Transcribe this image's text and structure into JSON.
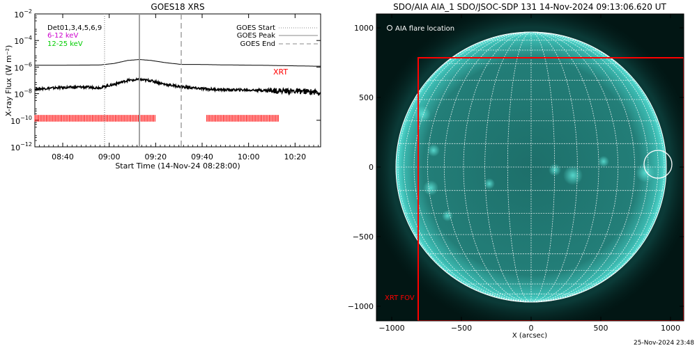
{
  "chart_data": [
    {
      "type": "line",
      "title": "GOES18 XRS",
      "ylabel": "X-ray Flux (W m⁻²)",
      "xlabel": "Start Time (14-Nov-24 08:28:00)",
      "yscale": "log",
      "ylim_exponent": [
        -12,
        -2
      ],
      "y_tick_exponents": [
        -12,
        -10,
        -8,
        -6,
        -4,
        -2
      ],
      "y_tick_base": "10",
      "xlim_min_after_start": [
        0,
        123
      ],
      "x_ticks": [
        {
          "label": "08:40",
          "minute": 12
        },
        {
          "label": "09:00",
          "minute": 32
        },
        {
          "label": "09:20",
          "minute": 52
        },
        {
          "label": "09:40",
          "minute": 72
        },
        {
          "label": "10:00",
          "minute": 92
        },
        {
          "label": "10:20",
          "minute": 112
        }
      ],
      "detectors_label": "Det01,3,4,5,6,9",
      "band_labels": [
        {
          "text": "6-12 keV",
          "color": "#cc00cc"
        },
        {
          "text": "12-25 keV",
          "color": "#00cc00"
        }
      ],
      "legend": {
        "placement": "top-right",
        "items": [
          {
            "label": "GOES Start",
            "style": "dotted"
          },
          {
            "label": "GOES Peak",
            "style": "solid"
          },
          {
            "label": "GOES End",
            "style": "dashed"
          }
        ]
      },
      "markers": {
        "goes_start_minute": 30,
        "goes_peak_minute": 45,
        "goes_end_minute": 63
      },
      "series": [
        {
          "name": "long",
          "color": "#000000",
          "x_minutes": [
            0,
            10,
            20,
            28,
            34,
            40,
            45,
            50,
            56,
            63,
            70,
            80,
            90,
            100,
            110,
            120,
            123
          ],
          "log10_flux": [
            -5.86,
            -5.86,
            -5.85,
            -5.84,
            -5.73,
            -5.5,
            -5.43,
            -5.5,
            -5.66,
            -5.8,
            -5.8,
            -5.83,
            -5.85,
            -5.87,
            -5.9,
            -5.93,
            -5.93
          ]
        },
        {
          "name": "short",
          "color": "#000000",
          "x_minutes": [
            0,
            10,
            20,
            28,
            34,
            40,
            45,
            50,
            56,
            63,
            70,
            80,
            90,
            100,
            110,
            118,
            123
          ],
          "log10_flux": [
            -7.65,
            -7.55,
            -7.5,
            -7.55,
            -7.3,
            -7.0,
            -6.95,
            -7.02,
            -7.3,
            -7.48,
            -7.6,
            -7.7,
            -7.72,
            -7.75,
            -7.8,
            -7.85,
            -7.9
          ]
        }
      ],
      "xrt_label": "XRT",
      "xrt_label_color": "#ff0000",
      "xrt_observation_windows_min": [
        [
          0,
          52
        ],
        [
          74,
          105
        ]
      ],
      "xrt_tick_log10_flux": [
        -10.1,
        -9.6
      ]
    },
    {
      "type": "image",
      "title": "SDO/AIA AIA_1 SDO/JSOC-SDP 131 14-Nov-2024 09:13:06.620 UT",
      "xlabel": "X (arcsec)",
      "x_ticks": [
        -1000,
        -500,
        0,
        500,
        1000
      ],
      "y_ticks": [
        1000,
        500,
        0,
        -500,
        -1000
      ],
      "xlim": [
        -1110,
        1095
      ],
      "ylim": [
        -1105,
        1100
      ],
      "solar_radius_arcsec": 970,
      "grid_spacing_deg": 10,
      "grid_color": "#ffffff",
      "disk_color": "#1a6e69",
      "limb_color": "#4fd8cf",
      "flare_location_label": "AIA flare location",
      "flare_location_arcsec": [
        910,
        20
      ],
      "flare_circle_radius_arcsec": 100,
      "fov_label": "XRT FOV",
      "fov_color": "#ff0000",
      "fov_box_arcsec": [
        -810,
        785,
        1095,
        -1105
      ]
    }
  ],
  "footer": {
    "timestamp": "25-Nov-2024 23:48"
  }
}
